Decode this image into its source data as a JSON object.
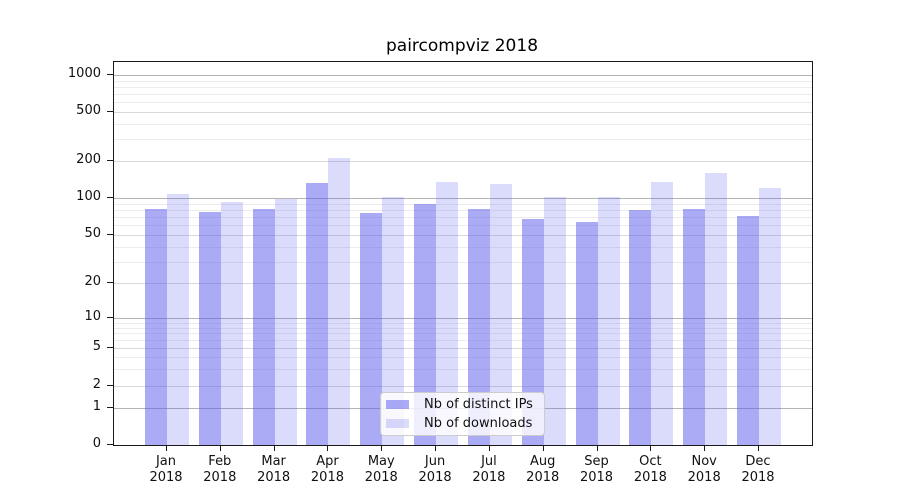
{
  "title": "paircompviz 2018",
  "chart_data": {
    "type": "bar",
    "title": "paircompviz 2018",
    "xlabel": "",
    "ylabel": "",
    "yscale": "symlog",
    "grid": true,
    "legend_position": "lower center",
    "categories": [
      {
        "month": "Jan",
        "year": "2018"
      },
      {
        "month": "Feb",
        "year": "2018"
      },
      {
        "month": "Mar",
        "year": "2018"
      },
      {
        "month": "Apr",
        "year": "2018"
      },
      {
        "month": "May",
        "year": "2018"
      },
      {
        "month": "Jun",
        "year": "2018"
      },
      {
        "month": "Jul",
        "year": "2018"
      },
      {
        "month": "Aug",
        "year": "2018"
      },
      {
        "month": "Sep",
        "year": "2018"
      },
      {
        "month": "Oct",
        "year": "2018"
      },
      {
        "month": "Nov",
        "year": "2018"
      },
      {
        "month": "Dec",
        "year": "2018"
      }
    ],
    "series": [
      {
        "name": "Nb of distinct IPs",
        "values": [
          81,
          77,
          81,
          133,
          76,
          90,
          81,
          68,
          64,
          80,
          81,
          71
        ],
        "color": "#5555ec",
        "alpha": 0.5
      },
      {
        "name": "Nb of downloads",
        "values": [
          108,
          92,
          98,
          210,
          102,
          136,
          129,
          102,
          101,
          134,
          160,
          121
        ],
        "color": "#5555ec",
        "alpha": 0.21
      }
    ],
    "y_ticks": [
      0,
      1,
      2,
      5,
      10,
      20,
      50,
      100,
      200,
      500,
      1000
    ],
    "y_minor_ticks": [
      3,
      4,
      6,
      7,
      8,
      9,
      30,
      40,
      60,
      70,
      80,
      90,
      300,
      400,
      600,
      700,
      800,
      900
    ],
    "ylim": [
      0,
      1270
    ]
  },
  "colors": {
    "grid_decade": "#b4b4b4",
    "grid_labeled": "#d9d9d9",
    "grid_minor": "#ececec",
    "axis": "#1a1a1a",
    "background": "#ffffff"
  }
}
